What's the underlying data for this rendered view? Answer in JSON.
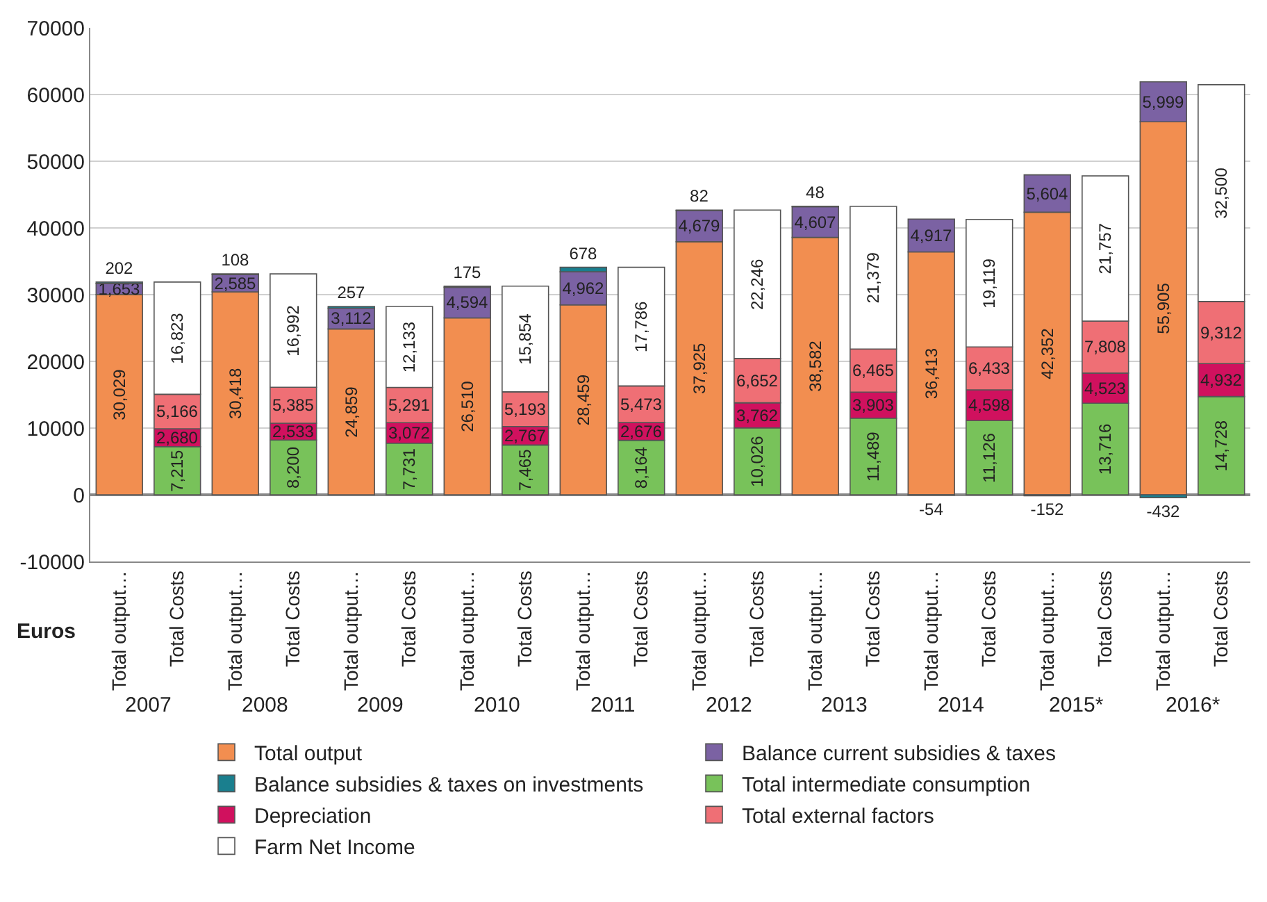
{
  "chart_data": {
    "type": "bar",
    "stacked": true,
    "ylabel": "Euros",
    "categories": [
      "Total output…",
      "Total Costs",
      "Total output…",
      "Total Costs",
      "Total output…",
      "Total Costs",
      "Total output…",
      "Total Costs",
      "Total output…",
      "Total Costs",
      "Total output…",
      "Total Costs",
      "Total output…",
      "Total Costs",
      "Total output…",
      "Total Costs",
      "Total output…",
      "Total Costs",
      "Total output…",
      "Total Costs"
    ],
    "annotations": [
      "2007",
      "2008",
      "2009",
      "2010",
      "2011",
      "2012",
      "2013",
      "2014",
      "2015*",
      "2016*"
    ],
    "series": [
      {
        "name": "Total output",
        "color": "#f28e50",
        "values": [
          30029,
          null,
          30418,
          null,
          24859,
          null,
          26510,
          null,
          28459,
          null,
          37925,
          null,
          38582,
          null,
          36413,
          null,
          42352,
          null,
          55905,
          null
        ],
        "value_labels": [
          "30,029",
          null,
          "30,418",
          null,
          "24,859",
          null,
          "26,510",
          null,
          "28,459",
          null,
          "37,925",
          null,
          "38,582",
          null,
          "36,413",
          null,
          "42,352",
          null,
          "55,905",
          null
        ]
      },
      {
        "name": "Balance current subsidies & taxes",
        "color": "#7b62a3",
        "values": [
          1653,
          null,
          2585,
          null,
          3112,
          null,
          4594,
          null,
          4962,
          null,
          4679,
          null,
          4607,
          null,
          4917,
          null,
          5604,
          null,
          5999,
          null
        ],
        "value_labels": [
          "1,653",
          null,
          "2,585",
          null,
          "3,112",
          null,
          "4,594",
          null,
          "4,962",
          null,
          "4,679",
          null,
          "4,607",
          null,
          "4,917",
          null,
          "5,604",
          null,
          "5,999",
          null
        ]
      },
      {
        "name": "Balance subsidies & taxes on investments",
        "color": "#1a7f8e",
        "values": [
          202,
          null,
          108,
          null,
          257,
          null,
          175,
          null,
          678,
          null,
          82,
          null,
          48,
          null,
          -54,
          null,
          -152,
          null,
          -432,
          null
        ],
        "value_labels": [
          "202",
          null,
          "108",
          null,
          "257",
          null,
          "175",
          null,
          "678",
          null,
          "82",
          null,
          "48",
          null,
          "-54",
          null,
          "-152",
          null,
          "-432",
          null
        ]
      },
      {
        "name": "Total intermediate consumption",
        "color": "#78c25a",
        "values": [
          null,
          7215,
          null,
          8200,
          null,
          7731,
          null,
          7465,
          null,
          8164,
          null,
          10026,
          null,
          11489,
          null,
          11126,
          null,
          13716,
          null,
          14728
        ],
        "value_labels": [
          null,
          "7,215",
          null,
          "8,200",
          null,
          "7,731",
          null,
          "7,465",
          null,
          "8,164",
          null,
          "10,026",
          null,
          "11,489",
          null,
          "11,126",
          null,
          "13,716",
          null,
          "14,728"
        ]
      },
      {
        "name": "Depreciation",
        "color": "#d0115e",
        "values": [
          null,
          2680,
          null,
          2533,
          null,
          3072,
          null,
          2767,
          null,
          2676,
          null,
          3762,
          null,
          3903,
          null,
          4598,
          null,
          4523,
          null,
          4932
        ],
        "value_labels": [
          null,
          "2,680",
          null,
          "2,533",
          null,
          "3,072",
          null,
          "2,767",
          null,
          "2,676",
          null,
          "3,762",
          null,
          "3,903",
          null,
          "4,598",
          null,
          "4,523",
          null,
          "4,932"
        ]
      },
      {
        "name": "Total external factors",
        "color": "#ef6f75",
        "values": [
          null,
          5166,
          null,
          5385,
          null,
          5291,
          null,
          5193,
          null,
          5473,
          null,
          6652,
          null,
          6465,
          null,
          6433,
          null,
          7808,
          null,
          9312
        ],
        "value_labels": [
          null,
          "5,166",
          null,
          "5,385",
          null,
          "5,291",
          null,
          "5,193",
          null,
          "5,473",
          null,
          "6,652",
          null,
          "6,465",
          null,
          "6,433",
          null,
          "7,808",
          null,
          "9,312"
        ]
      },
      {
        "name": "Farm Net Income",
        "color": "#ffffff",
        "values": [
          null,
          16823,
          null,
          16992,
          null,
          12133,
          null,
          15854,
          null,
          17786,
          null,
          22246,
          null,
          21379,
          null,
          19119,
          null,
          21757,
          null,
          32500
        ],
        "value_labels": [
          null,
          "16,823",
          null,
          "16,992",
          null,
          "12,133",
          null,
          "15,854",
          null,
          "17,786",
          null,
          "22,246",
          null,
          "21,379",
          null,
          "19,119",
          null,
          "21,757",
          null,
          "32,500"
        ]
      }
    ],
    "ylim": [
      -10000,
      70000
    ],
    "yticks": [
      -10000,
      0,
      10000,
      20000,
      30000,
      40000,
      50000,
      60000,
      70000
    ],
    "grid": "y",
    "legend": "bottom"
  }
}
